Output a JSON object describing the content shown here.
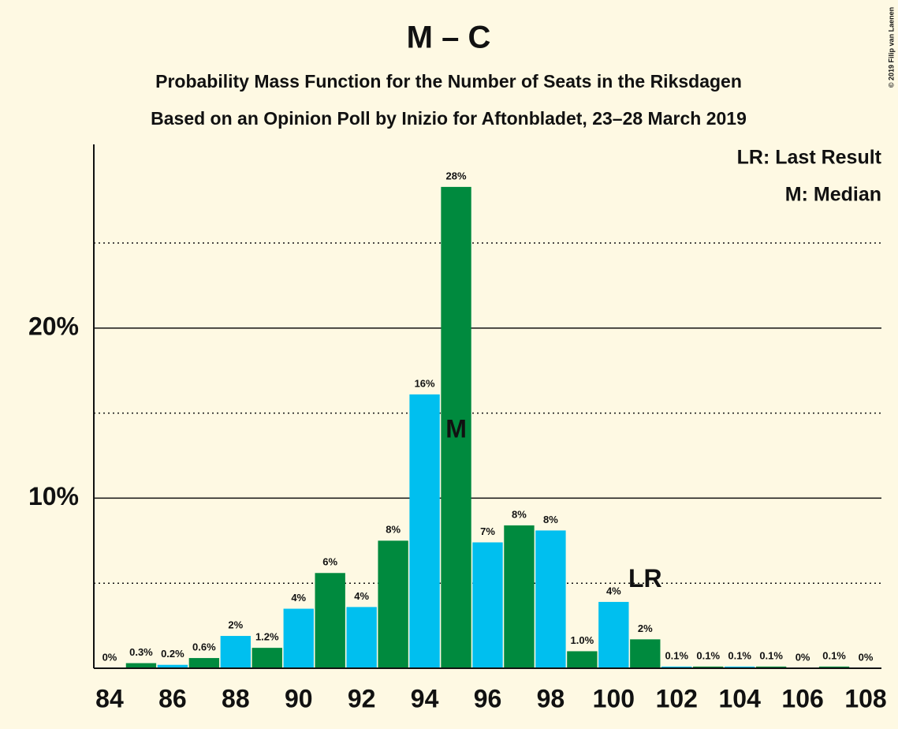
{
  "chart_data": {
    "type": "bar",
    "title": "M – C",
    "subtitle": "Probability Mass Function for the Number of Seats in the Riksdagen",
    "subtitle2": "Based on an Opinion Poll by Inizio for Aftonbladet, 23–28 March 2019",
    "copyright": "© 2019 Filip van Laenen",
    "legend": [
      "LR: Last Result",
      "M: Median"
    ],
    "x": [
      84,
      85,
      86,
      87,
      88,
      89,
      90,
      91,
      92,
      93,
      94,
      95,
      96,
      97,
      98,
      99,
      100,
      101,
      102,
      103,
      104,
      105,
      106,
      107,
      108
    ],
    "values": [
      0,
      0.3,
      0.2,
      0.6,
      1.9,
      1.2,
      3.5,
      5.6,
      3.6,
      7.5,
      16.1,
      28.3,
      7.4,
      8.4,
      8.1,
      1.0,
      3.9,
      1.7,
      0.1,
      0.1,
      0.1,
      0.1,
      0,
      0.1,
      0
    ],
    "value_labels": [
      "0%",
      "0.3%",
      "0.2%",
      "0.6%",
      "2%",
      "1.2%",
      "4%",
      "6%",
      "4%",
      "8%",
      "16%",
      "28%",
      "7%",
      "8%",
      "8%",
      "1.0%",
      "4%",
      "2%",
      "0.1%",
      "0.1%",
      "0.1%",
      "0.1%",
      "0%",
      "0.1%",
      "0%"
    ],
    "colors": [
      "#008a3e",
      "#008a3e",
      "#00bfef",
      "#008a3e",
      "#00bfef",
      "#008a3e",
      "#00bfef",
      "#008a3e",
      "#00bfef",
      "#008a3e",
      "#00bfef",
      "#008a3e",
      "#00bfef",
      "#008a3e",
      "#00bfef",
      "#008a3e",
      "#00bfef",
      "#008a3e",
      "#00bfef",
      "#008a3e",
      "#00bfef",
      "#008a3e",
      "#00bfef",
      "#008a3e",
      "#00bfef"
    ],
    "xlim": [
      83.5,
      108.5
    ],
    "xticks": [
      84,
      86,
      88,
      90,
      92,
      94,
      96,
      98,
      100,
      102,
      104,
      106,
      108
    ],
    "ylim": [
      0,
      30.8
    ],
    "yticks": [
      {
        "value": 10,
        "label": "10%"
      },
      {
        "value": 20,
        "label": "20%"
      }
    ],
    "minor_yticks": [
      5,
      15,
      25
    ],
    "annotations": [
      {
        "text": "M",
        "x": 95
      },
      {
        "text": "LR",
        "x": 101
      }
    ]
  }
}
